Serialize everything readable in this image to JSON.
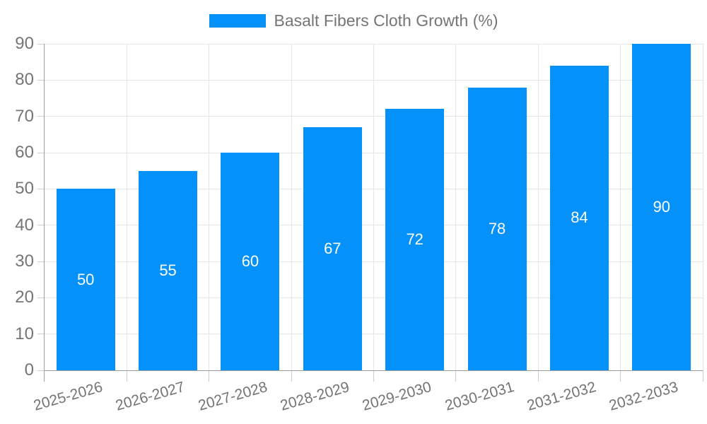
{
  "chart_data": {
    "type": "bar",
    "legend": {
      "label": "Basalt Fibers Cloth Growth (%)",
      "position": "top"
    },
    "categories": [
      "2025-2026",
      "2026-2027",
      "2027-2028",
      "2028-2029",
      "2029-2030",
      "2030-2031",
      "2031-2032",
      "2032-2033"
    ],
    "values": [
      50,
      55,
      60,
      67,
      72,
      78,
      84,
      90
    ],
    "xlabel": "",
    "ylabel": "",
    "ylim": [
      0,
      90
    ],
    "yticks": [
      0,
      10,
      20,
      30,
      40,
      50,
      60,
      70,
      80,
      90
    ],
    "grid": true,
    "x_label_rotation_deg": -16,
    "colors": {
      "bar": "#0591fa",
      "value_label": "#ffffff",
      "tick_label": "#757575",
      "legend_text": "#757575",
      "gridline": "#e6e6e6",
      "tick": "#cccccc",
      "axis": "#9e9e9e",
      "background": "#ffffff"
    }
  }
}
